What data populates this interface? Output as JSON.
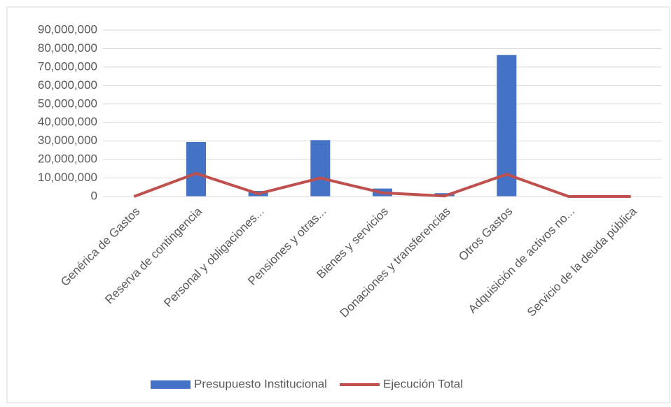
{
  "chart_data": {
    "type": "bar_line",
    "categories": [
      "Genérica de Gastos",
      "Reserva de contingencia",
      "Personal y obligaciones...",
      "Pensiones y otras...",
      "Bienes y servicios",
      "Donaciones y transferencias",
      "Otros Gastos",
      "Adquisición de activos no...",
      "Servicio de la deuda pública"
    ],
    "series": [
      {
        "name": "Presupuesto Institucional",
        "type": "bar",
        "color": "#4472c4",
        "values": [
          0,
          29500000,
          3000000,
          30500000,
          4300000,
          1800000,
          76500000,
          0,
          0
        ]
      },
      {
        "name": "Ejecución Total",
        "type": "line",
        "color": "#c0504d",
        "values": [
          0,
          12500000,
          1500000,
          10000000,
          2000000,
          300000,
          12000000,
          0,
          0
        ]
      }
    ],
    "ylim": [
      0,
      90000000
    ],
    "yticks": [
      0,
      {
        "value": 10000000,
        "label": "10,000,000"
      },
      {
        "value": 20000000,
        "label": "20,000,000"
      },
      {
        "value": 30000000,
        "label": "30,000,000"
      },
      {
        "value": 40000000,
        "label": "40,000,000"
      },
      {
        "value": 50000000,
        "label": "50,000,000"
      },
      {
        "value": 60000000,
        "label": "60,000,000"
      },
      {
        "value": 70000000,
        "label": "70,000,000"
      },
      {
        "value": 80000000,
        "label": "80,000,000"
      },
      {
        "value": 90000000,
        "label": "90,000,000"
      }
    ],
    "grid": true,
    "legend": "bottom"
  }
}
